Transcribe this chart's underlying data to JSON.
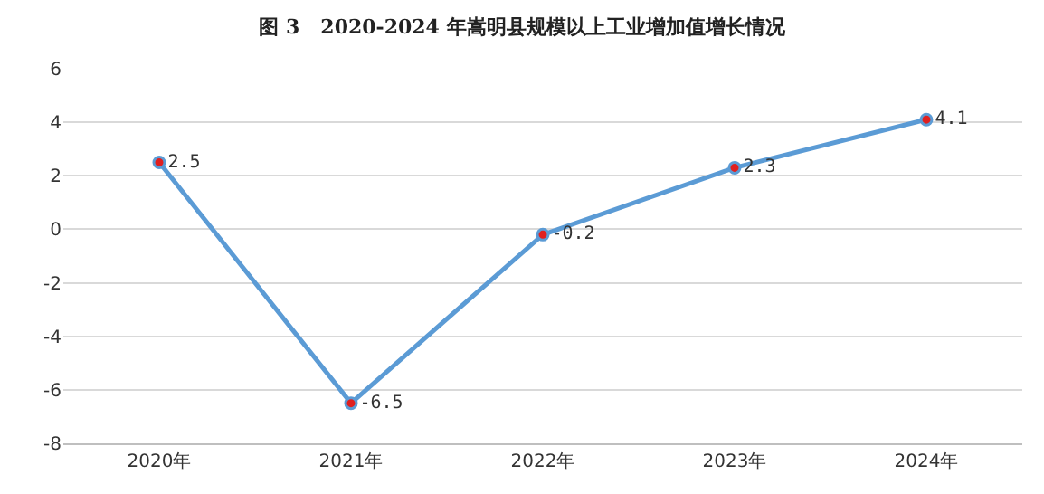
{
  "chart_data": {
    "type": "line",
    "title": "图 3   2020-2024 年嵩明县规模以上工业增加值增长情况",
    "categories": [
      "2020年",
      "2021年",
      "2022年",
      "2023年",
      "2024年"
    ],
    "series": [
      {
        "color": "#5b9bd5",
        "values": [
          2.5,
          -6.5,
          -0.2,
          2.3,
          4.1
        ]
      }
    ],
    "ylim": [
      -8,
      6
    ],
    "yticks": [
      -8,
      -6,
      -4,
      -2,
      0,
      2,
      4,
      6
    ],
    "grid": "y",
    "marker": "circle",
    "line_style": "solid",
    "data_labels": true
  }
}
